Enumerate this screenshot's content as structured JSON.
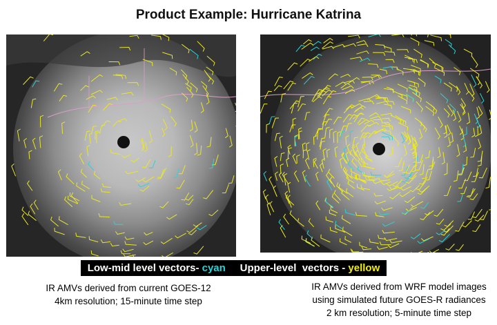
{
  "title": "Product Example: Hurricane Katrina",
  "legend": {
    "low_prefix": "Low-mid level vectors-",
    "low_color_word": "cyan",
    "upper_prefix": "Upper-level  vectors -",
    "upper_color_word": "yellow",
    "colors": {
      "cyan": "#2ad4d6",
      "yellow": "#f3f000"
    }
  },
  "captions": {
    "left": [
      "IR AMVs derived from current GOES-12",
      "4km resolution; 15-minute time step"
    ],
    "right": [
      "IR AMVs derived from WRF model images",
      "using simulated future GOES-R radiances",
      "2 km resolution; 5-minute time step"
    ]
  }
}
